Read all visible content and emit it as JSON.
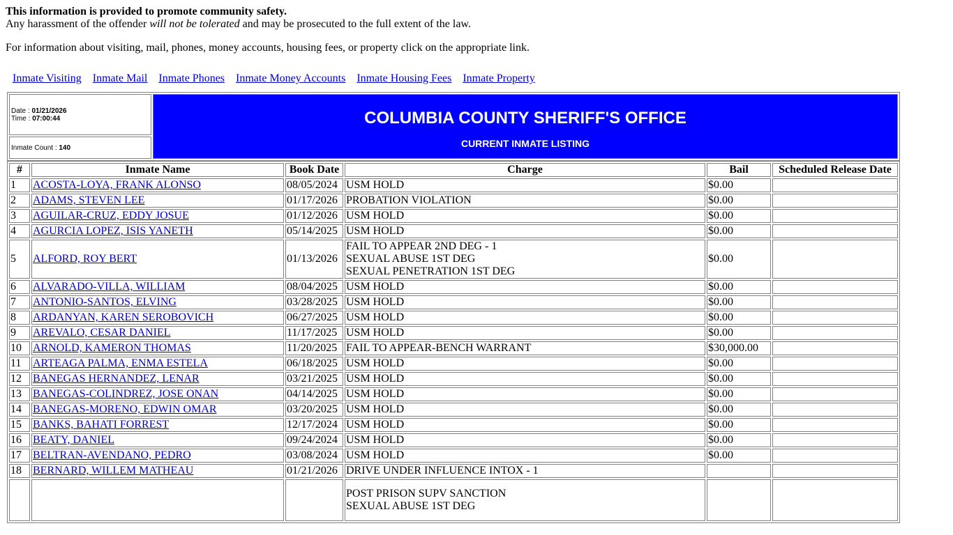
{
  "notice": {
    "bold": "This information is provided to promote community safety.",
    "line_pre": "Any harassment of the offender ",
    "line_em": "will not be tolerated",
    "line_post": " and may be prosecuted to the full extent of the law."
  },
  "info": "For information about visiting, mail, phones, money accounts, housing fees, or property click on the appropriate link.",
  "links": [
    "Inmate Visiting",
    "Inmate Mail",
    "Inmate Phones",
    "Inmate Money Accounts",
    "Inmate Housing Fees",
    "Inmate Property"
  ],
  "header": {
    "date_label": "Date : ",
    "date": "01/21/2026",
    "time_label": "Time : ",
    "time": "07:00:44",
    "count_label": "Inmate Count : ",
    "count": "140",
    "title": "COLUMBIA COUNTY SHERIFF'S OFFICE",
    "subtitle": "CURRENT INMATE LISTING",
    "color": "#0000ff"
  },
  "columns": [
    "#",
    "Inmate Name",
    "Book Date",
    "Charge",
    "Bail",
    "Scheduled Release Date"
  ],
  "rows": [
    {
      "n": "1",
      "name": "ACOSTA-LOYA, FRANK ALONSO",
      "book": "08/05/2024",
      "charges": [
        "USM HOLD"
      ],
      "bail": "$0.00",
      "release": ""
    },
    {
      "n": "2",
      "name": "ADAMS, STEVEN LEE",
      "book": "01/17/2026",
      "charges": [
        "PROBATION VIOLATION"
      ],
      "bail": "$0.00",
      "release": ""
    },
    {
      "n": "3",
      "name": "AGUILAR-CRUZ, EDDY JOSUE",
      "book": "01/12/2026",
      "charges": [
        "USM HOLD"
      ],
      "bail": "$0.00",
      "release": ""
    },
    {
      "n": "4",
      "name": "AGURCIA LOPEZ, ISIS YANETH",
      "book": "05/14/2025",
      "charges": [
        "USM HOLD"
      ],
      "bail": "$0.00",
      "release": ""
    },
    {
      "n": "5",
      "name": "ALFORD, ROY BERT",
      "book": "01/13/2026",
      "charges": [
        "FAIL TO APPEAR 2ND DEG - 1",
        "SEXUAL ABUSE 1ST DEG",
        "SEXUAL PENETRATION 1ST DEG"
      ],
      "bail": "$0.00",
      "release": ""
    },
    {
      "n": "6",
      "name": "ALVARADO-VILLA, WILLIAM",
      "book": "08/04/2025",
      "charges": [
        "USM HOLD"
      ],
      "bail": "$0.00",
      "release": ""
    },
    {
      "n": "7",
      "name": "ANTONIO-SANTOS, ELVING",
      "book": "03/28/2025",
      "charges": [
        "USM HOLD"
      ],
      "bail": "$0.00",
      "release": ""
    },
    {
      "n": "8",
      "name": "ARDANYAN, KAREN SEROBOVICH",
      "book": "06/27/2025",
      "charges": [
        "USM HOLD"
      ],
      "bail": "$0.00",
      "release": ""
    },
    {
      "n": "9",
      "name": "AREVALO, CESAR DANIEL",
      "book": "11/17/2025",
      "charges": [
        "USM HOLD"
      ],
      "bail": "$0.00",
      "release": ""
    },
    {
      "n": "10",
      "name": "ARNOLD, KAMERON THOMAS",
      "book": "11/20/2025",
      "charges": [
        "FAIL TO APPEAR-BENCH WARRANT"
      ],
      "bail": "$30,000.00",
      "release": ""
    },
    {
      "n": "11",
      "name": "ARTEAGA PALMA, ENMA ESTELA",
      "book": "06/18/2025",
      "charges": [
        "USM HOLD"
      ],
      "bail": "$0.00",
      "release": ""
    },
    {
      "n": "12",
      "name": "BANEGAS HERNANDEZ, LENAR",
      "book": "03/21/2025",
      "charges": [
        "USM HOLD"
      ],
      "bail": "$0.00",
      "release": ""
    },
    {
      "n": "13",
      "name": "BANEGAS-COLINDREZ, JOSE ONAN",
      "book": "04/14/2025",
      "charges": [
        "USM HOLD"
      ],
      "bail": "$0.00",
      "release": ""
    },
    {
      "n": "14",
      "name": "BANEGAS-MORENO, EDWIN OMAR",
      "book": "03/20/2025",
      "charges": [
        "USM HOLD"
      ],
      "bail": "$0.00",
      "release": ""
    },
    {
      "n": "15",
      "name": "BANKS, BAHATI FORREST",
      "book": "12/17/2024",
      "charges": [
        "USM HOLD"
      ],
      "bail": "$0.00",
      "release": ""
    },
    {
      "n": "16",
      "name": "BEATY, DANIEL",
      "book": "09/24/2024",
      "charges": [
        "USM HOLD"
      ],
      "bail": "$0.00",
      "release": ""
    },
    {
      "n": "17",
      "name": "BELTRAN-AVENDANO, PEDRO",
      "book": "03/08/2024",
      "charges": [
        "USM HOLD"
      ],
      "bail": "$0.00",
      "release": ""
    },
    {
      "n": "18",
      "name": "BERNARD, WILLEM MATHEAU",
      "book": "01/21/2026",
      "charges": [
        "DRIVE UNDER INFLUENCE INTOX - 1"
      ],
      "bail": "",
      "release": ""
    },
    {
      "n": "",
      "name": "",
      "book": "",
      "charges": [
        "POST PRISON SUPV SANCTION",
        "SEXUAL ABUSE 1ST DEG"
      ],
      "bail": "",
      "release": ""
    }
  ]
}
